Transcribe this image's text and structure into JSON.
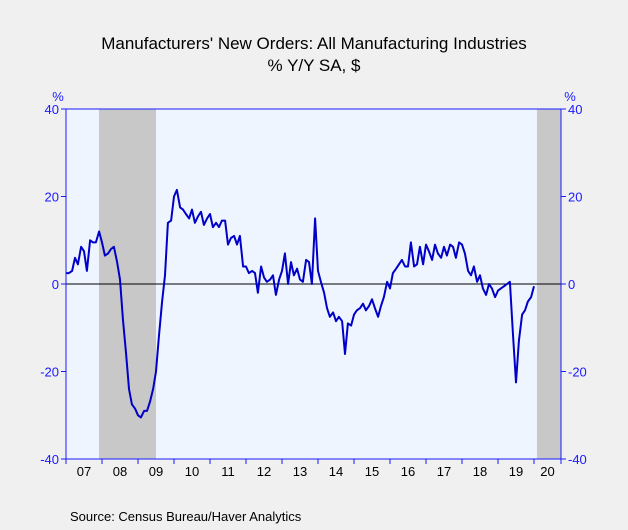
{
  "chart_data": {
    "type": "line",
    "title": "Manufacturers' New Orders: All Manufacturing Industries",
    "subtitle": "% Y/Y   SA, $",
    "y_unit_left": "%",
    "y_unit_right": "%",
    "ylim": [
      -40,
      40
    ],
    "y_ticks": [
      40,
      20,
      0,
      -20,
      -40
    ],
    "x_tick_labels": [
      "07",
      "08",
      "09",
      "10",
      "11",
      "12",
      "13",
      "14",
      "15",
      "16",
      "17",
      "18",
      "19",
      "20"
    ],
    "x_start_year": 2007,
    "x_end_year": 2020.75,
    "recessions": [
      [
        2007.917,
        2009.5
      ],
      [
        2020.083,
        2020.75
      ]
    ],
    "grid": false,
    "colors": {
      "line": "#0000c8",
      "plot_bg": "#eef5ff",
      "recession": "#c8c8c8",
      "axis": "#1a1aff"
    },
    "series": [
      {
        "points": [
          [
            2007.0,
            2.5
          ],
          [
            2007.08,
            2.5
          ],
          [
            2007.17,
            3.0
          ],
          [
            2007.25,
            6.0
          ],
          [
            2007.33,
            4.5
          ],
          [
            2007.42,
            8.5
          ],
          [
            2007.5,
            7.5
          ],
          [
            2007.58,
            3.0
          ],
          [
            2007.67,
            10.0
          ],
          [
            2007.75,
            9.5
          ],
          [
            2007.83,
            9.5
          ],
          [
            2007.92,
            12.0
          ],
          [
            2008.0,
            9.5
          ],
          [
            2008.08,
            6.5
          ],
          [
            2008.17,
            7.0
          ],
          [
            2008.25,
            8.0
          ],
          [
            2008.33,
            8.5
          ],
          [
            2008.42,
            5.0
          ],
          [
            2008.5,
            1.0
          ],
          [
            2008.58,
            -8.0
          ],
          [
            2008.67,
            -16.0
          ],
          [
            2008.75,
            -24.0
          ],
          [
            2008.83,
            -27.5
          ],
          [
            2008.92,
            -28.5
          ],
          [
            2009.0,
            -30.0
          ],
          [
            2009.08,
            -30.5
          ],
          [
            2009.17,
            -29.0
          ],
          [
            2009.25,
            -29.0
          ],
          [
            2009.33,
            -27.0
          ],
          [
            2009.42,
            -24.0
          ],
          [
            2009.5,
            -20.0
          ],
          [
            2009.58,
            -12.0
          ],
          [
            2009.67,
            -4.0
          ],
          [
            2009.75,
            2.0
          ],
          [
            2009.83,
            14.0
          ],
          [
            2009.92,
            14.5
          ],
          [
            2010.0,
            20.0
          ],
          [
            2010.08,
            21.5
          ],
          [
            2010.17,
            17.5
          ],
          [
            2010.25,
            17.0
          ],
          [
            2010.33,
            16.0
          ],
          [
            2010.42,
            15.0
          ],
          [
            2010.5,
            17.0
          ],
          [
            2010.58,
            14.0
          ],
          [
            2010.67,
            15.5
          ],
          [
            2010.75,
            16.5
          ],
          [
            2010.83,
            13.5
          ],
          [
            2010.92,
            15.0
          ],
          [
            2011.0,
            16.0
          ],
          [
            2011.08,
            13.0
          ],
          [
            2011.17,
            14.0
          ],
          [
            2011.25,
            13.0
          ],
          [
            2011.33,
            14.5
          ],
          [
            2011.42,
            14.5
          ],
          [
            2011.5,
            9.0
          ],
          [
            2011.58,
            10.5
          ],
          [
            2011.67,
            11.0
          ],
          [
            2011.75,
            9.0
          ],
          [
            2011.83,
            11.0
          ],
          [
            2011.92,
            4.0
          ],
          [
            2012.0,
            4.0
          ],
          [
            2012.08,
            2.5
          ],
          [
            2012.17,
            3.0
          ],
          [
            2012.25,
            2.5
          ],
          [
            2012.33,
            -2.0
          ],
          [
            2012.42,
            4.0
          ],
          [
            2012.5,
            1.5
          ],
          [
            2012.58,
            0.5
          ],
          [
            2012.67,
            1.0
          ],
          [
            2012.75,
            2.0
          ],
          [
            2012.83,
            -2.5
          ],
          [
            2012.92,
            1.0
          ],
          [
            2013.0,
            3.0
          ],
          [
            2013.08,
            7.0
          ],
          [
            2013.17,
            0.0
          ],
          [
            2013.25,
            5.0
          ],
          [
            2013.33,
            2.0
          ],
          [
            2013.42,
            3.5
          ],
          [
            2013.5,
            1.0
          ],
          [
            2013.58,
            0.5
          ],
          [
            2013.67,
            5.5
          ],
          [
            2013.75,
            5.0
          ],
          [
            2013.83,
            0.0
          ],
          [
            2013.92,
            15.0
          ],
          [
            2014.0,
            3.0
          ],
          [
            2014.08,
            0.5
          ],
          [
            2014.17,
            -2.0
          ],
          [
            2014.25,
            -5.5
          ],
          [
            2014.33,
            -7.5
          ],
          [
            2014.42,
            -6.5
          ],
          [
            2014.5,
            -8.5
          ],
          [
            2014.58,
            -7.5
          ],
          [
            2014.67,
            -8.5
          ],
          [
            2014.75,
            -16.0
          ],
          [
            2014.83,
            -9.0
          ],
          [
            2014.92,
            -9.5
          ],
          [
            2015.0,
            -7.0
          ],
          [
            2015.08,
            -6.0
          ],
          [
            2015.17,
            -5.5
          ],
          [
            2015.25,
            -4.5
          ],
          [
            2015.33,
            -6.0
          ],
          [
            2015.42,
            -5.0
          ],
          [
            2015.5,
            -3.5
          ],
          [
            2015.58,
            -5.5
          ],
          [
            2015.67,
            -7.5
          ],
          [
            2015.75,
            -5.0
          ],
          [
            2015.83,
            -3.0
          ],
          [
            2015.92,
            0.5
          ],
          [
            2016.0,
            -1.0
          ],
          [
            2016.08,
            2.5
          ],
          [
            2016.17,
            3.5
          ],
          [
            2016.25,
            4.5
          ],
          [
            2016.33,
            5.5
          ],
          [
            2016.42,
            4.0
          ],
          [
            2016.5,
            4.0
          ],
          [
            2016.58,
            9.5
          ],
          [
            2016.67,
            4.0
          ],
          [
            2016.75,
            4.5
          ],
          [
            2016.83,
            8.5
          ],
          [
            2016.92,
            4.5
          ],
          [
            2017.0,
            9.0
          ],
          [
            2017.08,
            7.5
          ],
          [
            2017.17,
            5.5
          ],
          [
            2017.25,
            9.0
          ],
          [
            2017.33,
            7.0
          ],
          [
            2017.42,
            6.0
          ],
          [
            2017.5,
            8.5
          ],
          [
            2017.58,
            6.5
          ],
          [
            2017.67,
            9.0
          ],
          [
            2017.75,
            8.5
          ],
          [
            2017.83,
            6.0
          ],
          [
            2017.92,
            9.5
          ],
          [
            2018.0,
            9.0
          ],
          [
            2018.08,
            7.0
          ],
          [
            2018.17,
            3.0
          ],
          [
            2018.25,
            2.0
          ],
          [
            2018.33,
            4.0
          ],
          [
            2018.42,
            0.5
          ],
          [
            2018.5,
            2.0
          ],
          [
            2018.58,
            -1.0
          ],
          [
            2018.67,
            -2.5
          ],
          [
            2018.75,
            0.0
          ],
          [
            2018.83,
            -1.0
          ],
          [
            2018.92,
            -3.0
          ],
          [
            2019.0,
            -1.5
          ],
          [
            2019.08,
            -1.0
          ],
          [
            2019.17,
            -0.5
          ],
          [
            2019.25,
            0.0
          ],
          [
            2019.33,
            0.5
          ],
          [
            2019.42,
            -12.0
          ],
          [
            2019.5,
            -22.5
          ],
          [
            2019.58,
            -13.0
          ],
          [
            2019.67,
            -7.0
          ],
          [
            2019.75,
            -6.0
          ],
          [
            2019.83,
            -4.0
          ],
          [
            2019.92,
            -3.0
          ],
          [
            2020.0,
            -0.5
          ]
        ]
      }
    ]
  },
  "footer": {
    "source": "Source:  Census Bureau/Haver Analytics"
  }
}
